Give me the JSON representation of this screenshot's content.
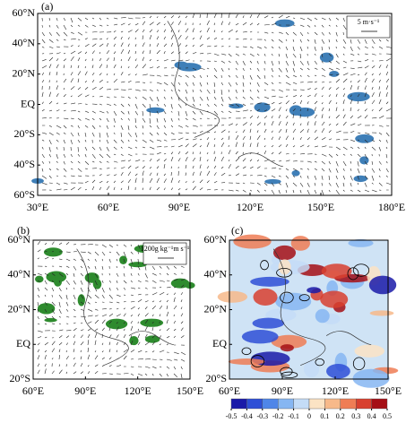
{
  "chart_data": [
    {
      "type": "vector-map",
      "panel_label": "(a)",
      "reference_vector": "5 m·s⁻¹",
      "xlim": [
        30,
        180
      ],
      "ylim": [
        -60,
        60
      ],
      "xticks": [
        {
          "value": 30,
          "label": "30°E"
        },
        {
          "value": 60,
          "label": "60°E"
        },
        {
          "value": 90,
          "label": "90°E"
        },
        {
          "value": 120,
          "label": "120°E"
        },
        {
          "value": 150,
          "label": "150°E"
        },
        {
          "value": 180,
          "label": "180°E"
        }
      ],
      "yticks": [
        {
          "value": 60,
          "label": "60°N"
        },
        {
          "value": 40,
          "label": "40°N"
        },
        {
          "value": 20,
          "label": "20°N"
        },
        {
          "value": 0,
          "label": "EQ"
        },
        {
          "value": -20,
          "label": "20°S"
        },
        {
          "value": -40,
          "label": "40°S"
        },
        {
          "value": -60,
          "label": "60°S"
        }
      ],
      "shading_color": "#3f7fb8"
    },
    {
      "type": "vector-map",
      "panel_label": "(b)",
      "reference_vector": "1200g kg⁻¹m s⁻¹",
      "xlim": [
        60,
        150
      ],
      "ylim": [
        -20,
        60
      ],
      "xticks": [
        {
          "value": 60,
          "label": "60°E"
        },
        {
          "value": 90,
          "label": "90°E"
        },
        {
          "value": 120,
          "label": "120°E"
        },
        {
          "value": 150,
          "label": "150°E"
        }
      ],
      "yticks": [
        {
          "value": 60,
          "label": "60°N"
        },
        {
          "value": 40,
          "label": "40°N"
        },
        {
          "value": 20,
          "label": "20°N"
        },
        {
          "value": 0,
          "label": "EQ"
        },
        {
          "value": -20,
          "label": "20°S"
        }
      ],
      "shading_color": "#2e8b2e"
    },
    {
      "type": "contour-map",
      "panel_label": "(c)",
      "xlim": [
        60,
        150
      ],
      "ylim": [
        -20,
        60
      ],
      "xticks": [
        {
          "value": 60,
          "label": "60°E"
        },
        {
          "value": 90,
          "label": "90°E"
        },
        {
          "value": 120,
          "label": "120°E"
        },
        {
          "value": 150,
          "label": "150°E"
        }
      ],
      "yticks": [
        {
          "value": 60,
          "label": "60°N"
        },
        {
          "value": 40,
          "label": "40°N"
        },
        {
          "value": 20,
          "label": "20°N"
        },
        {
          "value": 0,
          "label": "EQ"
        },
        {
          "value": -20,
          "label": "20°S"
        }
      ],
      "colorbar": {
        "ticks": [
          -0.5,
          -0.4,
          -0.3,
          -0.2,
          -0.1,
          0,
          0.1,
          0.2,
          0.3,
          0.4,
          0.5
        ],
        "colors": [
          "#1a1aa8",
          "#2e4fd6",
          "#4f86e8",
          "#86b6f2",
          "#c4dcf7",
          "#fbe3c4",
          "#f7b98a",
          "#ef7d55",
          "#d8402f",
          "#a50f15"
        ]
      }
    }
  ]
}
